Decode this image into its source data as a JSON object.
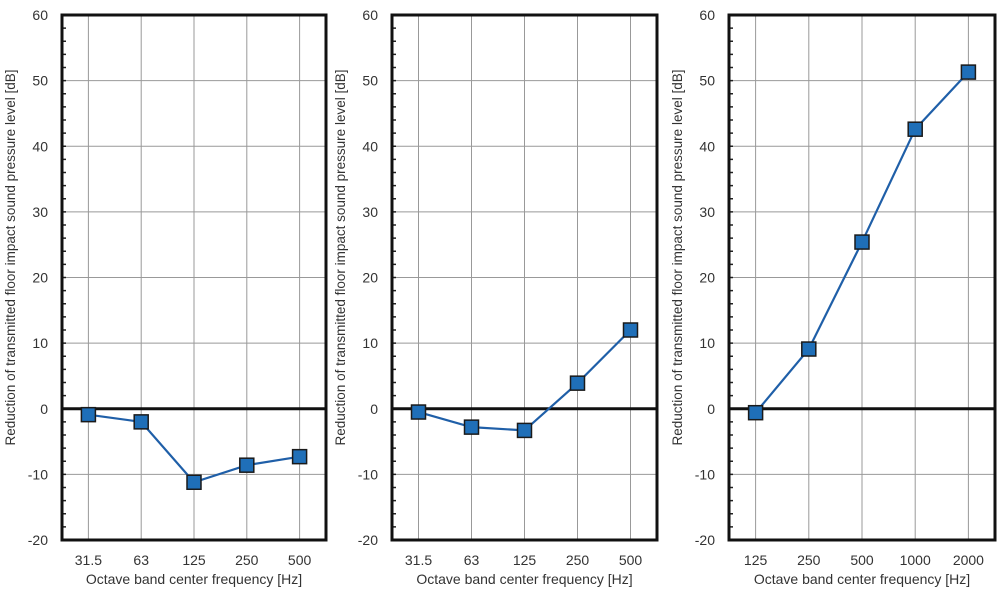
{
  "chart_data": [
    {
      "type": "line",
      "categories": [
        "31.5",
        "63",
        "125",
        "250",
        "500"
      ],
      "values": [
        -0.9,
        -2.0,
        -11.2,
        -8.6,
        -7.3
      ],
      "xlabel": "Octave band center frequency [Hz]",
      "ylabel": "Reduction of transmitted floor impact sound pressure level [dB]",
      "ylim": [
        -20,
        60
      ],
      "yticks": [
        "-20",
        "-10",
        "0",
        "10",
        "20",
        "30",
        "40",
        "50",
        "60"
      ],
      "grid": true
    },
    {
      "type": "line",
      "categories": [
        "31.5",
        "63",
        "125",
        "250",
        "500"
      ],
      "values": [
        -0.5,
        -2.8,
        -3.3,
        3.9,
        12.0
      ],
      "xlabel": "Octave band center frequency [Hz]",
      "ylabel": "Reduction of transmitted floor impact sound pressure level [dB]",
      "ylim": [
        -20,
        60
      ],
      "yticks": [
        "-20",
        "-10",
        "0",
        "10",
        "20",
        "30",
        "40",
        "50",
        "60"
      ],
      "grid": true
    },
    {
      "type": "line",
      "categories": [
        "125",
        "250",
        "500",
        "1000",
        "2000"
      ],
      "values": [
        -0.6,
        9.1,
        25.4,
        42.6,
        51.3
      ],
      "xlabel": "Octave band center frequency [Hz]",
      "ylabel": "Reduction of transmitted floor impact sound pressure level [dB]",
      "ylim": [
        -20,
        60
      ],
      "yticks": [
        "-20",
        "-10",
        "0",
        "10",
        "20",
        "30",
        "40",
        "50",
        "60"
      ],
      "grid": true
    }
  ],
  "colors": {
    "series": "#1f6fb8",
    "marker_edge": "#1a1a1a",
    "line": "#1f5fa8"
  }
}
